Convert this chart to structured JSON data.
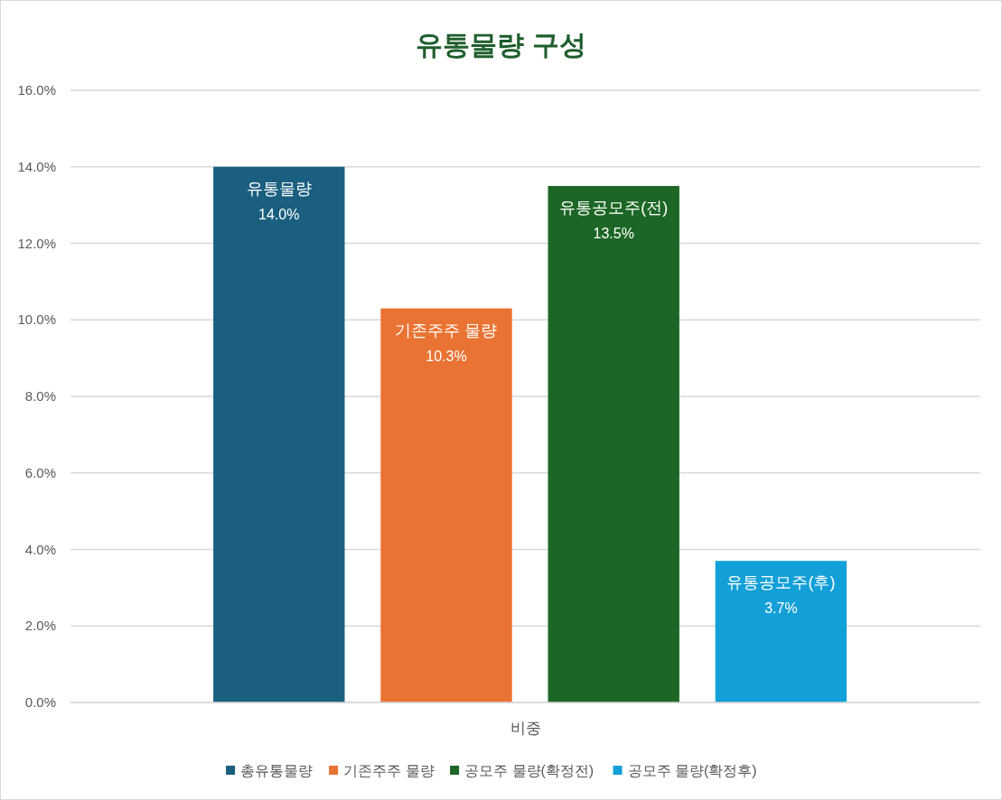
{
  "chart_data": {
    "type": "bar",
    "title": "유통물량 구성",
    "categories": [
      "비중"
    ],
    "series": [
      {
        "name": "총유통물량",
        "color": "#1a5f80",
        "values": [
          14.0
        ],
        "value_labels": [
          "유통물량\n14.0%"
        ]
      },
      {
        "name": "기존주주 물량",
        "color": "#e97333",
        "values": [
          10.3
        ],
        "value_labels": [
          "기존주주 물량\n10.3%"
        ]
      },
      {
        "name": "공모주 물량(확정전)",
        "color": "#1c6626",
        "values": [
          13.5
        ],
        "value_labels": [
          "유통공모주(전)\n13.5%"
        ]
      },
      {
        "name": "공모주 물량(확정후)",
        "color": "#139fd7",
        "values": [
          3.7
        ],
        "value_labels": [
          "유통공모주(후)\n3.7%"
        ]
      }
    ],
    "ylim": [
      0,
      16
    ],
    "yticks": [
      {
        "value": 0,
        "label": "0.0%"
      },
      {
        "value": 2,
        "label": "2.0%"
      },
      {
        "value": 4,
        "label": "4.0%"
      },
      {
        "value": 6,
        "label": "6.0%"
      },
      {
        "value": 8,
        "label": "8.0%"
      },
      {
        "value": 10,
        "label": "10.0%"
      },
      {
        "value": 12,
        "label": "12.0%"
      },
      {
        "value": 14,
        "label": "14.0%"
      },
      {
        "value": 16,
        "label": "16.0%"
      }
    ],
    "grid": true,
    "legend": "bottom"
  }
}
